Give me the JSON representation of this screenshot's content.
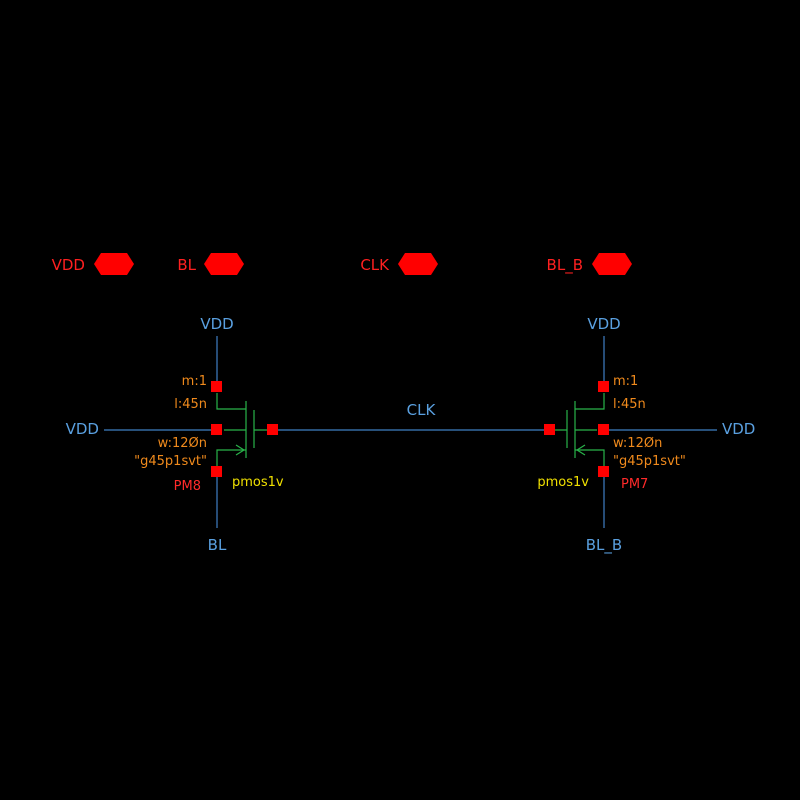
{
  "colors": {
    "background": "#000000",
    "wire": "#3f7fc4",
    "net_label": "#5aa0e0",
    "device": "#29b34a",
    "pin": "#ff0000",
    "pin_label": "#ff2020",
    "param": "#f08a1c",
    "cell_name": "#f0e000",
    "instance_name": "#ff2a2a"
  },
  "pins": [
    "VDD",
    "BL",
    "CLK",
    "BL_B"
  ],
  "wires": {
    "clk_label": "CLK"
  },
  "transistors": [
    {
      "instance": "PM8",
      "cell": "pmos1v",
      "multiplier": "m:1",
      "length": "l:45n",
      "width": "w:12Øn",
      "model": "\"g45p1svt\"",
      "source": "VDD",
      "drain": "BL",
      "bulk": "VDD"
    },
    {
      "instance": "PM7",
      "cell": "pmos1v",
      "multiplier": "m:1",
      "length": "l:45n",
      "width": "w:12Øn",
      "model": "\"g45p1svt\"",
      "source": "VDD",
      "drain": "BL_B",
      "bulk": "VDD"
    }
  ]
}
